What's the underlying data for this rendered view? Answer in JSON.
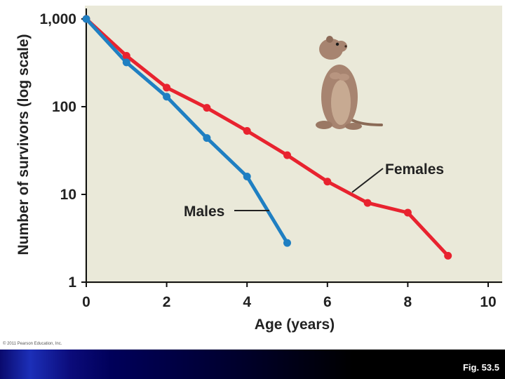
{
  "chart_data": {
    "type": "line",
    "ylabel": "Number of survivors (log scale)",
    "xlabel": "Age (years)",
    "xlim": [
      0,
      10
    ],
    "ylim": [
      1,
      1000
    ],
    "yscale": "log",
    "x_ticks": [
      0,
      2,
      4,
      6,
      8,
      10
    ],
    "x_tick_labels": [
      "0",
      "2",
      "4",
      "6",
      "8",
      "10"
    ],
    "y_ticks": [
      1,
      10,
      100,
      1000
    ],
    "y_tick_labels": [
      "1",
      "10",
      "100",
      "1,000"
    ],
    "grid": false,
    "series": [
      {
        "name": "Females",
        "color": "#e8232f",
        "x": [
          0,
          1,
          2,
          3,
          4,
          5,
          6,
          7,
          8,
          9
        ],
        "y": [
          1000,
          380,
          165,
          97,
          53,
          28,
          14,
          8,
          6.2,
          2
        ]
      },
      {
        "name": "Males",
        "color": "#1f7fc2",
        "x": [
          0,
          1,
          2,
          3,
          4,
          5
        ],
        "y": [
          1000,
          320,
          130,
          44,
          16,
          2.8
        ]
      }
    ],
    "legend_placement": "inline-labels"
  },
  "figure": {
    "copyright": "© 2011 Pearson Education, Inc.",
    "label": "Fig. 53.5",
    "illustration_icon": "ground-squirrel-icon"
  }
}
